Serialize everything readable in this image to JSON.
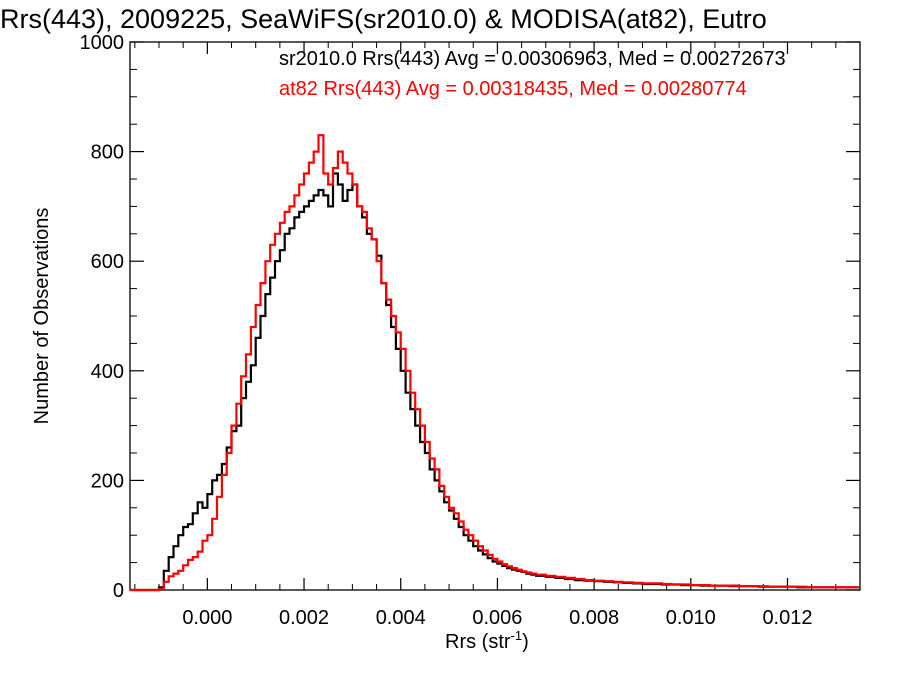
{
  "chart_data": {
    "type": "line",
    "title": "Rrs(443), 2009225, SeaWiFS(sr2010.0) & MODISA(at82), Eutro",
    "xlabel": "Rrs (str",
    "xlabel_sup": "-1",
    "xlabel_tail": ")",
    "ylabel": "Number of Observations",
    "xlim": [
      -0.0016,
      0.0135
    ],
    "ylim": [
      0,
      1000
    ],
    "grid": false,
    "step": "histogram",
    "x_ticks": [
      {
        "value": 0.0,
        "label": "0.000"
      },
      {
        "value": 0.002,
        "label": "0.002"
      },
      {
        "value": 0.004,
        "label": "0.004"
      },
      {
        "value": 0.006,
        "label": "0.006"
      },
      {
        "value": 0.008,
        "label": "0.008"
      },
      {
        "value": 0.01,
        "label": "0.010"
      },
      {
        "value": 0.012,
        "label": "0.012"
      }
    ],
    "y_ticks": [
      {
        "value": 0,
        "label": "0"
      },
      {
        "value": 200,
        "label": "200"
      },
      {
        "value": 400,
        "label": "400"
      },
      {
        "value": 600,
        "label": "600"
      },
      {
        "value": 800,
        "label": "800"
      },
      {
        "value": 1000,
        "label": "1000"
      }
    ],
    "annotations": [
      {
        "text": "sr2010.0 Rrs(443) Avg = 0.00306963, Med = 0.00272673",
        "color": "#000000"
      },
      {
        "text": "at82 Rrs(443) Avg = 0.00318435, Med = 0.00280774",
        "color": "#ff0000"
      }
    ],
    "series": [
      {
        "color": "#000000",
        "x": [
          -0.0016,
          -0.0012,
          -0.001,
          -0.0009,
          -0.0008,
          -0.0007,
          -0.0006,
          -0.0005,
          -0.0004,
          -0.0003,
          -0.0002,
          -0.0001,
          0.0,
          0.0001,
          0.0002,
          0.0003,
          0.0004,
          0.0005,
          0.0006,
          0.0007,
          0.0008,
          0.0009,
          0.001,
          0.0011,
          0.0012,
          0.0013,
          0.0014,
          0.0015,
          0.0016,
          0.0017,
          0.0018,
          0.0019,
          0.002,
          0.0021,
          0.0022,
          0.0023,
          0.0024,
          0.0025,
          0.0026,
          0.0027,
          0.0028,
          0.0029,
          0.003,
          0.0031,
          0.0032,
          0.0033,
          0.0034,
          0.0035,
          0.0036,
          0.0037,
          0.0038,
          0.0039,
          0.004,
          0.0041,
          0.0042,
          0.0043,
          0.0044,
          0.0045,
          0.0046,
          0.0047,
          0.0048,
          0.0049,
          0.005,
          0.0051,
          0.0052,
          0.0053,
          0.0054,
          0.0055,
          0.0056,
          0.0057,
          0.0058,
          0.0059,
          0.006,
          0.0061,
          0.0062,
          0.0063,
          0.0064,
          0.0065,
          0.0066,
          0.0067,
          0.0068,
          0.007,
          0.0072,
          0.0074,
          0.0076,
          0.0078,
          0.008,
          0.0082,
          0.0084,
          0.0086,
          0.0088,
          0.009,
          0.0092,
          0.0094,
          0.0096,
          0.0098,
          0.01,
          0.0102,
          0.0104,
          0.0106,
          0.0108,
          0.011,
          0.0112,
          0.0114,
          0.0116,
          0.0118,
          0.012,
          0.0122,
          0.0124,
          0.0126,
          0.0128,
          0.013,
          0.0132,
          0.0134
        ],
        "y": [
          0,
          0,
          5,
          35,
          60,
          80,
          100,
          115,
          120,
          140,
          160,
          150,
          175,
          200,
          210,
          230,
          260,
          290,
          300,
          350,
          380,
          410,
          460,
          500,
          540,
          570,
          600,
          620,
          650,
          660,
          680,
          690,
          700,
          710,
          720,
          730,
          720,
          700,
          760,
          740,
          710,
          730,
          740,
          700,
          680,
          650,
          640,
          610,
          560,
          520,
          480,
          440,
          400,
          360,
          330,
          300,
          270,
          250,
          220,
          200,
          180,
          160,
          145,
          130,
          115,
          100,
          90,
          80,
          72,
          65,
          58,
          52,
          48,
          44,
          40,
          37,
          35,
          33,
          30,
          28,
          26,
          24,
          22,
          20,
          18,
          17,
          16,
          15,
          14,
          13,
          12,
          11,
          11,
          10,
          10,
          9,
          9,
          8,
          8,
          8,
          7,
          7,
          7,
          6,
          6,
          6,
          6,
          5,
          5,
          5,
          5,
          5,
          5,
          5
        ]
      },
      {
        "color": "#ff0000",
        "x": [
          -0.0016,
          -0.0012,
          -0.001,
          -0.0009,
          -0.0008,
          -0.0007,
          -0.0006,
          -0.0005,
          -0.0004,
          -0.0003,
          -0.0002,
          -0.0001,
          0.0,
          0.0001,
          0.0002,
          0.0003,
          0.0004,
          0.0005,
          0.0006,
          0.0007,
          0.0008,
          0.0009,
          0.001,
          0.0011,
          0.0012,
          0.0013,
          0.0014,
          0.0015,
          0.0016,
          0.0017,
          0.0018,
          0.0019,
          0.002,
          0.0021,
          0.0022,
          0.0023,
          0.0024,
          0.0025,
          0.0026,
          0.0027,
          0.0028,
          0.0029,
          0.003,
          0.0031,
          0.0032,
          0.0033,
          0.0034,
          0.0035,
          0.0036,
          0.0037,
          0.0038,
          0.0039,
          0.004,
          0.0041,
          0.0042,
          0.0043,
          0.0044,
          0.0045,
          0.0046,
          0.0047,
          0.0048,
          0.0049,
          0.005,
          0.0051,
          0.0052,
          0.0053,
          0.0054,
          0.0055,
          0.0056,
          0.0057,
          0.0058,
          0.0059,
          0.006,
          0.0061,
          0.0062,
          0.0063,
          0.0064,
          0.0065,
          0.0066,
          0.0067,
          0.0068,
          0.007,
          0.0072,
          0.0074,
          0.0076,
          0.0078,
          0.008,
          0.0082,
          0.0084,
          0.0086,
          0.0088,
          0.009,
          0.0092,
          0.0094,
          0.0096,
          0.0098,
          0.01,
          0.0102,
          0.0104,
          0.0106,
          0.0108,
          0.011,
          0.0112,
          0.0114,
          0.0116,
          0.0118,
          0.012,
          0.0122,
          0.0124,
          0.0126,
          0.0128,
          0.013,
          0.0132,
          0.0134
        ],
        "y": [
          0,
          0,
          2,
          15,
          25,
          30,
          35,
          45,
          55,
          60,
          70,
          90,
          100,
          130,
          170,
          210,
          250,
          300,
          340,
          390,
          430,
          480,
          520,
          560,
          600,
          630,
          650,
          670,
          690,
          700,
          720,
          740,
          760,
          780,
          800,
          830,
          760,
          740,
          770,
          800,
          780,
          760,
          740,
          700,
          690,
          660,
          640,
          600,
          560,
          530,
          500,
          470,
          440,
          400,
          360,
          330,
          300,
          270,
          240,
          220,
          190,
          170,
          150,
          140,
          125,
          110,
          100,
          90,
          80,
          72,
          64,
          57,
          52,
          47,
          43,
          40,
          37,
          34,
          32,
          30,
          28,
          26,
          24,
          22,
          20,
          18,
          17,
          16,
          15,
          14,
          13,
          12,
          12,
          11,
          10,
          10,
          9,
          9,
          8,
          8,
          8,
          7,
          7,
          7,
          6,
          6,
          6,
          6,
          5,
          5,
          5,
          5,
          5,
          5
        ]
      }
    ]
  }
}
